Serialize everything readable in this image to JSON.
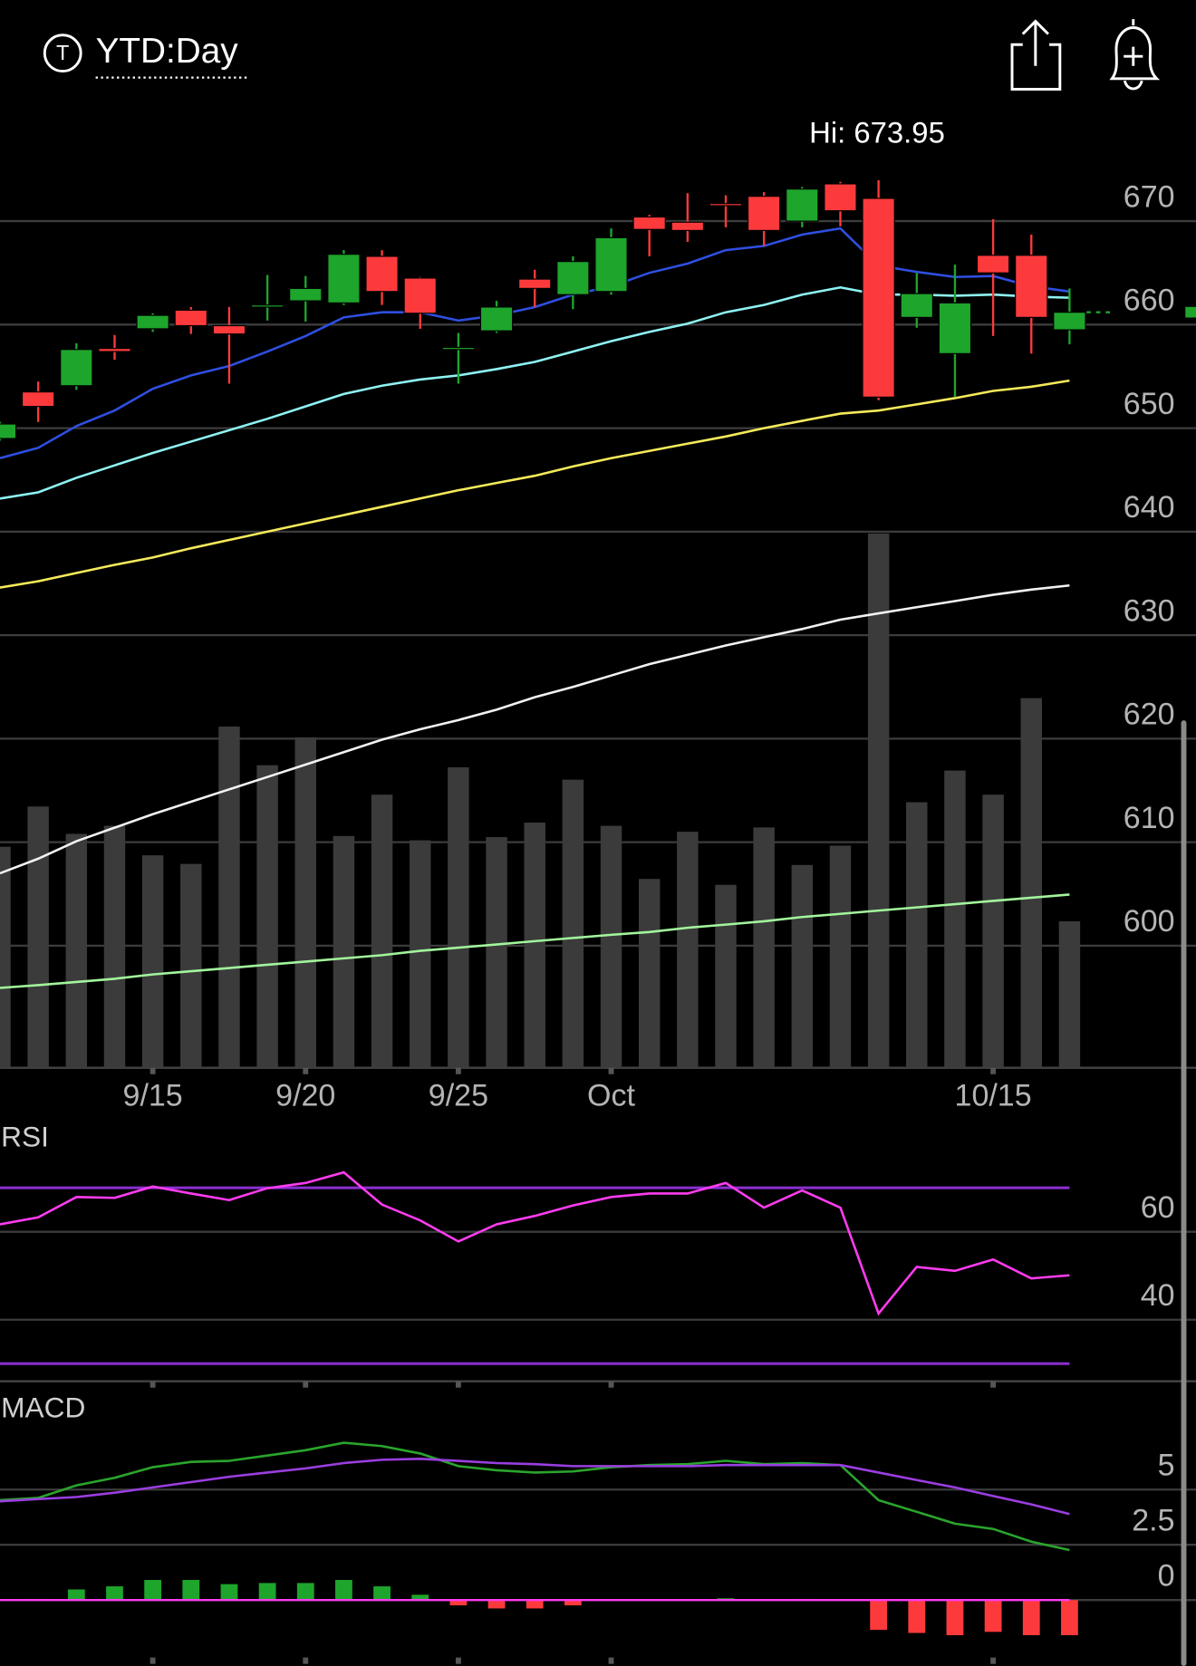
{
  "header": {
    "icon": "T",
    "period": "YTD:Day"
  },
  "chart_data": [
    {
      "type": "candlestick",
      "annotation": "Hi: 673.95",
      "categories": [
        null,
        null,
        null,
        null,
        "9/15",
        null,
        null,
        null,
        "9/20",
        null,
        null,
        null,
        "9/25",
        null,
        null,
        null,
        "Oct",
        null,
        null,
        null,
        null,
        null,
        null,
        null,
        null,
        null,
        "10/15",
        null,
        null
      ],
      "open": [
        649.0,
        653.5,
        654.1,
        657.7,
        659.6,
        661.4,
        659.9,
        661.7,
        662.3,
        662.1,
        666.6,
        664.5,
        657.6,
        659.4,
        664.4,
        662.9,
        663.2,
        670.4,
        669.9,
        671.7,
        672.4,
        670.0,
        673.6,
        672.2,
        660.7,
        657.2,
        666.7,
        666.7,
        659.5
      ],
      "high": [
        650.6,
        654.5,
        658.2,
        659.0,
        661.1,
        661.7,
        661.7,
        664.8,
        664.7,
        667.2,
        667.2,
        664.6,
        659.2,
        662.3,
        665.3,
        666.6,
        669.3,
        670.6,
        672.7,
        672.5,
        672.8,
        673.3,
        673.8,
        673.95,
        665.0,
        665.8,
        670.2,
        668.7,
        663.5
      ],
      "low": [
        648.8,
        650.6,
        653.7,
        656.6,
        659.3,
        659.1,
        654.3,
        660.4,
        660.3,
        661.9,
        661.9,
        659.6,
        654.3,
        659.2,
        661.7,
        661.5,
        662.9,
        666.6,
        668.0,
        669.4,
        667.6,
        669.4,
        669.5,
        652.7,
        659.7,
        653.0,
        658.9,
        657.2,
        658.1
      ],
      "close": [
        650.4,
        652.1,
        657.6,
        657.4,
        660.9,
        659.9,
        659.1,
        661.9,
        663.5,
        666.8,
        663.2,
        661.1,
        657.8,
        661.7,
        663.5,
        666.1,
        668.4,
        669.2,
        669.1,
        671.6,
        669.1,
        673.1,
        671.0,
        653.0,
        663.0,
        662.1,
        665.0,
        660.7,
        661.2
      ],
      "up_color": "#1ea52c",
      "down_color": "#fc3a3c",
      "series": [
        {
          "color": "#2f4fe0",
          "values": [
            647.1,
            648.1,
            650.2,
            651.7,
            653.8,
            655.1,
            656.0,
            657.4,
            658.9,
            660.7,
            661.2,
            661.2,
            660.4,
            660.9,
            661.7,
            662.9,
            663.7,
            665.0,
            665.9,
            667.2,
            667.6,
            668.7,
            669.3,
            665.7,
            665.1,
            664.6,
            664.7,
            663.7,
            663.2
          ]
        },
        {
          "color": "#8ff3f3",
          "values": [
            643.2,
            643.8,
            645.2,
            646.4,
            647.6,
            648.7,
            649.8,
            650.9,
            652.1,
            653.3,
            654.1,
            654.7,
            655.1,
            655.7,
            656.4,
            657.4,
            658.4,
            659.3,
            660.1,
            661.2,
            661.9,
            662.9,
            663.6,
            662.9,
            662.9,
            662.8,
            662.9,
            662.7,
            662.6
          ]
        },
        {
          "color": "#f5ea5a",
          "values": [
            634.6,
            635.2,
            636.0,
            636.8,
            637.5,
            638.4,
            639.2,
            640.0,
            640.8,
            641.6,
            642.4,
            643.2,
            644.0,
            644.7,
            645.4,
            646.3,
            647.1,
            647.8,
            648.5,
            649.2,
            650.0,
            650.7,
            651.4,
            651.7,
            652.3,
            652.9,
            653.6,
            654.0,
            654.6
          ]
        },
        {
          "color": "#f2f2f2",
          "values": [
            607.0,
            608.4,
            610.1,
            611.4,
            612.7,
            613.9,
            615.1,
            616.3,
            617.5,
            618.7,
            619.9,
            620.9,
            621.8,
            622.8,
            624.0,
            625.0,
            626.1,
            627.2,
            628.1,
            629.0,
            629.8,
            630.6,
            631.5,
            632.1,
            632.7,
            633.3,
            633.9,
            634.4,
            634.8
          ]
        }
      ],
      "ylim": [
        588.2,
        681.1
      ],
      "yticks": [
        600,
        610,
        620,
        630,
        640,
        650,
        660,
        670
      ],
      "grid": true,
      "volume": {
        "color": "#3b3b3b",
        "vlim": [
          0,
          100
        ],
        "values": [
          41.2,
          48.7,
          43.6,
          45.1,
          39.6,
          38.0,
          63.6,
          56.4,
          61.6,
          43.2,
          50.9,
          42.4,
          56.0,
          43.0,
          45.7,
          53.7,
          45.1,
          35.2,
          44.0,
          34.1,
          44.8,
          37.8,
          41.4,
          99.6,
          49.5,
          55.4,
          50.9,
          68.9,
          27.3
        ],
        "average": {
          "color": "#a2f59c",
          "values": [
            14.9,
            15.4,
            16.0,
            16.6,
            17.4,
            18.0,
            18.6,
            19.2,
            19.8,
            20.4,
            21.0,
            21.8,
            22.4,
            23.0,
            23.6,
            24.2,
            24.8,
            25.3,
            26.1,
            26.7,
            27.3,
            28.1,
            28.7,
            29.3,
            29.9,
            30.5,
            31.1,
            31.7,
            32.3
          ]
        }
      }
    },
    {
      "type": "line",
      "title": "RSI",
      "ylim": [
        26,
        84
      ],
      "yticks": [
        40,
        60
      ],
      "grid": true,
      "levels": [
        30,
        70
      ],
      "level_color": "#8a2fd0",
      "series": [
        {
          "color": "#ff3cf0",
          "values": [
            61.7,
            63.3,
            67.9,
            67.7,
            70.3,
            68.7,
            67.2,
            69.9,
            71.1,
            73.5,
            66.2,
            62.6,
            57.8,
            61.7,
            63.6,
            66.0,
            67.9,
            68.7,
            68.7,
            71.1,
            65.5,
            69.4,
            65.5,
            41.4,
            52.0,
            51.1,
            53.7,
            49.4,
            50.1
          ]
        }
      ]
    },
    {
      "type": "macd",
      "title": "MACD",
      "ylim": [
        -2.6,
        8.94
      ],
      "yticks": [
        0,
        2.5,
        5
      ],
      "grid": true,
      "zero_color": "#ff3cf0",
      "up_color": "#1ea52c",
      "down_color": "#fc3a3c",
      "series": [
        {
          "color": "#2aa52c",
          "values": [
            4.52,
            4.62,
            5.19,
            5.53,
            6.01,
            6.25,
            6.3,
            6.54,
            6.78,
            7.12,
            6.97,
            6.63,
            6.06,
            5.87,
            5.77,
            5.82,
            6.01,
            6.11,
            6.15,
            6.3,
            6.15,
            6.2,
            6.11,
            4.52,
            3.99,
            3.46,
            3.22,
            2.64,
            2.26
          ]
        },
        {
          "color": "#9a3ee0",
          "values": [
            4.47,
            4.57,
            4.66,
            4.86,
            5.1,
            5.34,
            5.58,
            5.77,
            5.96,
            6.2,
            6.35,
            6.39,
            6.3,
            6.2,
            6.15,
            6.06,
            6.06,
            6.06,
            6.06,
            6.11,
            6.11,
            6.11,
            6.11,
            5.77,
            5.43,
            5.1,
            4.71,
            4.33,
            3.89
          ]
        }
      ],
      "histogram": [
        0.02,
        0.05,
        0.48,
        0.62,
        0.91,
        0.91,
        0.72,
        0.77,
        0.77,
        0.91,
        0.62,
        0.24,
        -0.24,
        -0.38,
        -0.38,
        -0.24,
        0.0,
        0.0,
        0.02,
        0.08,
        0.0,
        0.05,
        0.0,
        -1.35,
        -1.49,
        -1.59,
        -1.44,
        -1.59,
        -1.59
      ]
    }
  ]
}
